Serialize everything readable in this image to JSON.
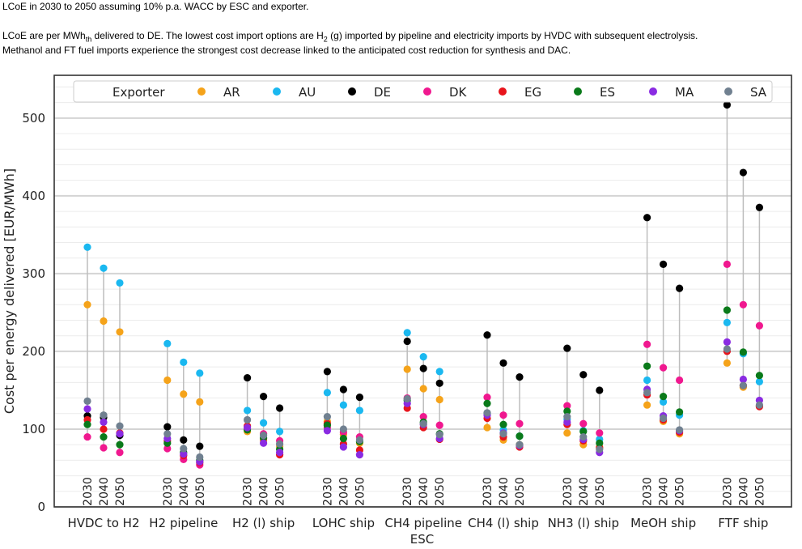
{
  "caption": {
    "line1": "LCoE in 2030 to 2050 assuming 10% p.a. WACC by ESC and exporter.",
    "line2_a": "LCoE are per MWh",
    "line2_sub": "th",
    "line2_b": " delivered to DE. The lowest cost import options are H",
    "line2_sub2": "2",
    "line2_c": " (g) imported by pipeline and electricity imports by HVDC with subsequent electrolysis.",
    "line3": "Methanol and FT fuel imports experience the strongest cost decrease linked to the anticipated cost reduction for synthesis and DAC."
  },
  "chart_data": {
    "type": "scatter",
    "xlabel": "ESC",
    "ylabel": "Cost per energy delivered [EUR/MWh]",
    "ylim": [
      0,
      555
    ],
    "yticks": [
      0,
      100,
      200,
      300,
      400,
      500
    ],
    "grid": true,
    "legend": {
      "title": "Exporter",
      "placement": "top",
      "entries": [
        {
          "name": "AR",
          "color": "#f5a31a"
        },
        {
          "name": "AU",
          "color": "#1ab8f0"
        },
        {
          "name": "DE",
          "color": "#000000"
        },
        {
          "name": "DK",
          "color": "#f0188f"
        },
        {
          "name": "EG",
          "color": "#e8141c"
        },
        {
          "name": "ES",
          "color": "#0a7a1a"
        },
        {
          "name": "MA",
          "color": "#8a2be2"
        },
        {
          "name": "SA",
          "color": "#708090"
        }
      ]
    },
    "years": [
      "2030",
      "2040",
      "2050"
    ],
    "categories": [
      "HVDC to H2",
      "H2 pipeline",
      "H2 (l) ship",
      "LOHC ship",
      "CH4 pipeline",
      "CH4 (l) ship",
      "NH3 (l) ship",
      "MeOH ship",
      "FTF ship"
    ],
    "series_order": [
      "AR",
      "AU",
      "DE",
      "DK",
      "EG",
      "ES",
      "MA",
      "SA"
    ],
    "values": [
      [
        [
          260,
          334,
          117,
          90,
          112,
          106,
          126,
          136
        ],
        [
          239,
          307,
          115,
          76,
          100,
          90,
          109,
          118
        ],
        [
          225,
          288,
          92,
          70,
          95,
          80,
          94,
          104
        ]
      ],
      [
        [
          163,
          210,
          103,
          75,
          85,
          82,
          88,
          94
        ],
        [
          145,
          186,
          86,
          61,
          66,
          70,
          68,
          75
        ],
        [
          135,
          172,
          78,
          54,
          57,
          60,
          58,
          64
        ]
      ],
      [
        [
          97,
          124,
          166,
          101,
          104,
          99,
          102,
          112
        ],
        [
          85,
          108,
          142,
          94,
          88,
          89,
          82,
          92
        ],
        [
          78,
          97,
          127,
          85,
          67,
          74,
          70,
          81
        ]
      ],
      [
        [
          110,
          147,
          174,
          102,
          107,
          105,
          98,
          116
        ],
        [
          93,
          131,
          151,
          96,
          81,
          88,
          77,
          100
        ],
        [
          82,
          124,
          141,
          90,
          73,
          84,
          67,
          86
        ]
      ],
      [
        [
          177,
          224,
          213,
          140,
          127,
          137,
          133,
          139
        ],
        [
          152,
          193,
          178,
          116,
          102,
          109,
          106,
          107
        ],
        [
          138,
          174,
          159,
          105,
          87,
          94,
          88,
          93
        ]
      ],
      [
        [
          102,
          120,
          221,
          141,
          114,
          133,
          118,
          121
        ],
        [
          86,
          99,
          185,
          118,
          90,
          106,
          95,
          94
        ],
        [
          80,
          91,
          167,
          107,
          77,
          91,
          79,
          80
        ]
      ],
      [
        [
          95,
          113,
          204,
          130,
          106,
          123,
          109,
          116
        ],
        [
          80,
          98,
          170,
          107,
          85,
          97,
          87,
          90
        ],
        [
          77,
          87,
          150,
          95,
          76,
          82,
          70,
          74
        ]
      ],
      [
        [
          131,
          163,
          372,
          209,
          144,
          181,
          151,
          147
        ],
        [
          110,
          135,
          312,
          179,
          112,
          142,
          117,
          114
        ],
        [
          94,
          118,
          281,
          163,
          96,
          122,
          98,
          99
        ]
      ],
      [
        [
          185,
          237,
          517,
          312,
          200,
          253,
          212,
          203
        ],
        [
          154,
          197,
          430,
          260,
          156,
          199,
          164,
          156
        ],
        [
          130,
          161,
          385,
          233,
          129,
          169,
          137,
          131
        ]
      ]
    ]
  }
}
